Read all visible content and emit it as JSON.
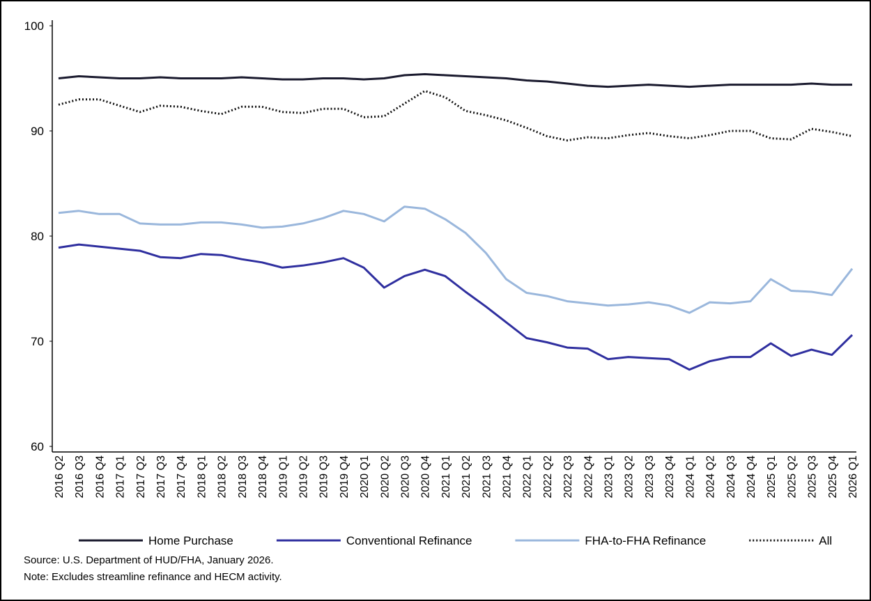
{
  "chart_data": {
    "type": "line",
    "categories": [
      "2016 Q2",
      "2016 Q3",
      "2016 Q4",
      "2017 Q1",
      "2017 Q2",
      "2017 Q3",
      "2017 Q4",
      "2018 Q1",
      "2018 Q2",
      "2018 Q3",
      "2018 Q4",
      "2019 Q1",
      "2019 Q2",
      "2019 Q3",
      "2019 Q4",
      "2020 Q1",
      "2020 Q2",
      "2020 Q3",
      "2020 Q4",
      "2021 Q1",
      "2021 Q2",
      "2021 Q3",
      "2021 Q4",
      "2022 Q1",
      "2022 Q2",
      "2022 Q3",
      "2022 Q4",
      "2023 Q1",
      "2023 Q2",
      "2023 Q3",
      "2023 Q4",
      "2024 Q1",
      "2024 Q2",
      "2024 Q3",
      "2024 Q4",
      "2025 Q1",
      "2025 Q2",
      "2025 Q3",
      "2025 Q4",
      "2026 Q1"
    ],
    "series": [
      {
        "name": "Home Purchase",
        "color": "#1a1a2e",
        "dash": "solid",
        "values": [
          95.0,
          95.2,
          95.1,
          95.0,
          95.0,
          95.1,
          95.0,
          95.0,
          95.0,
          95.1,
          95.0,
          94.9,
          94.9,
          95.0,
          95.0,
          94.9,
          95.0,
          95.3,
          95.4,
          95.3,
          95.2,
          95.1,
          95.0,
          94.8,
          94.7,
          94.5,
          94.3,
          94.2,
          94.3,
          94.4,
          94.3,
          94.2,
          94.3,
          94.4,
          94.4,
          94.4,
          94.4,
          94.5,
          94.4,
          94.4
        ]
      },
      {
        "name": "Conventional Refinance",
        "color": "#2f2f9f",
        "dash": "solid",
        "values": [
          78.9,
          79.2,
          79.0,
          78.8,
          78.6,
          78.0,
          77.9,
          78.3,
          78.2,
          77.8,
          77.5,
          77.0,
          77.2,
          77.5,
          77.9,
          77.0,
          75.1,
          76.2,
          76.8,
          76.2,
          74.7,
          73.3,
          71.8,
          70.3,
          69.9,
          69.4,
          69.3,
          68.3,
          68.5,
          68.4,
          68.3,
          67.3,
          68.1,
          68.5,
          68.5,
          69.8,
          68.6,
          69.2,
          68.7,
          70.6
        ]
      },
      {
        "name": "FHA-to-FHA Refinance",
        "color": "#9ab7dc",
        "dash": "solid",
        "values": [
          82.2,
          82.4,
          82.1,
          82.1,
          81.2,
          81.1,
          81.1,
          81.3,
          81.3,
          81.1,
          80.8,
          80.9,
          81.2,
          81.7,
          82.4,
          82.1,
          81.4,
          82.8,
          82.6,
          81.6,
          80.3,
          78.4,
          75.9,
          74.6,
          74.3,
          73.8,
          73.6,
          73.4,
          73.5,
          73.7,
          73.4,
          72.7,
          73.7,
          73.6,
          73.8,
          75.9,
          74.8,
          74.7,
          74.4,
          76.9
        ]
      },
      {
        "name": "All",
        "color": "#111111",
        "dash": "dotted",
        "values": [
          92.5,
          93.0,
          93.0,
          92.4,
          91.8,
          92.4,
          92.3,
          91.9,
          91.6,
          92.3,
          92.3,
          91.8,
          91.7,
          92.1,
          92.1,
          91.3,
          91.4,
          92.6,
          93.8,
          93.2,
          91.9,
          91.5,
          91.0,
          90.3,
          89.5,
          89.1,
          89.4,
          89.3,
          89.6,
          89.8,
          89.5,
          89.3,
          89.6,
          90.0,
          90.0,
          89.3,
          89.2,
          90.2,
          89.9,
          89.5
        ]
      }
    ],
    "ylim": [
      60,
      100
    ],
    "yticks": [
      60,
      70,
      80,
      90,
      100
    ],
    "grid": false,
    "legend": "bottom",
    "source": "Source: U.S. Department of HUD/FHA, January 2026.",
    "note": "Note: Excludes streamline refinance and HECM activity."
  }
}
